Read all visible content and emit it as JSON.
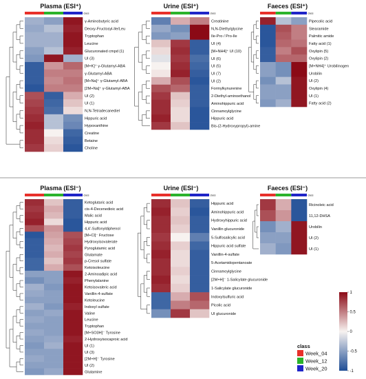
{
  "figure": {
    "colorscale": {
      "min": -1,
      "max": 1,
      "ticks": [
        1,
        0.5,
        0,
        -0.5,
        -1
      ],
      "low_color": "#1f4e96",
      "mid_color": "#f7f2f0",
      "high_color": "#8b0a16"
    },
    "legend": {
      "title": "class",
      "items": [
        {
          "label": "Week_04",
          "color": "#e8302a"
        },
        {
          "label": "Week_12",
          "color": "#2bb32b"
        },
        {
          "label": "Week_20",
          "color": "#1f25c8"
        }
      ]
    },
    "class_label": "class"
  },
  "chart_data": [
    {
      "type": "heatmap",
      "title": "Plasma (ESI⁺)",
      "columns": [
        "Week_04",
        "Week_12",
        "Week_20"
      ],
      "rows": [
        "γ-Aminobutyric acid",
        "Deoxy-Fructosyl-Ile/Leu",
        "Tryptophan",
        "Leucine",
        "Glucuronated cmpd (1)",
        "UI (3)",
        "[M+K]⁺ γ-Glutamyl-ABA",
        "γ-Glutamyl-ABA",
        "[M+Na]⁺ γ-Glutamyl-ABA",
        "[2M+Na]⁺ γ-Glutamyl-ABA",
        "UI (2)",
        "UI (1)",
        "N,N-Tetradecanediel",
        "Hippuric acid",
        "Hypoxanthine",
        "Creatine",
        "Betaine",
        "Choline"
      ],
      "values": [
        [
          -0.4,
          -0.5,
          0.95
        ],
        [
          -0.45,
          -0.3,
          0.9
        ],
        [
          -0.4,
          -0.4,
          0.95
        ],
        [
          -0.4,
          -0.4,
          0.95
        ],
        [
          -0.5,
          -0.3,
          0.9
        ],
        [
          -0.55,
          0.95,
          -0.4
        ],
        [
          -0.9,
          0.4,
          0.6
        ],
        [
          -0.9,
          0.5,
          0.5
        ],
        [
          -0.9,
          0.45,
          0.55
        ],
        [
          -0.95,
          0.5,
          0.5
        ],
        [
          0.7,
          -0.9,
          0.3
        ],
        [
          0.75,
          -0.85,
          0.2
        ],
        [
          0.8,
          -0.8,
          0.1
        ],
        [
          0.85,
          -0.3,
          -0.6
        ],
        [
          0.9,
          -0.3,
          -0.65
        ],
        [
          0.85,
          0.0,
          -0.85
        ],
        [
          0.85,
          0.1,
          -0.9
        ],
        [
          0.8,
          0.15,
          -0.95
        ]
      ]
    },
    {
      "type": "heatmap",
      "title": "Urine (ESI⁺)",
      "columns": [
        "Week_04",
        "Week_12",
        "Week_20"
      ],
      "rows": [
        "Creatinine",
        "N,N-Diethylglycine",
        "Ile-Pro / Pro-Ile",
        "UI (4)",
        "[M+NH4]⁺ UI (10)",
        "UI (6)",
        "UI (5)",
        "UI (7)",
        "UI (2)",
        "Formylkynurenine",
        "2-Diethyl-aminoethanol",
        "Aminohippuric acid",
        "Cinnamoylglycine",
        "Hippuric acid",
        "Bis-(2-Hydroxypropyl)-amine"
      ],
      "values": [
        [
          -0.7,
          0.3,
          0.5
        ],
        [
          -0.45,
          -0.6,
          1.0
        ],
        [
          -0.55,
          -0.5,
          1.0
        ],
        [
          0.2,
          0.8,
          -0.9
        ],
        [
          0.1,
          0.85,
          -0.9
        ],
        [
          -0.1,
          0.8,
          -0.8
        ],
        [
          0.0,
          0.85,
          -0.85
        ],
        [
          0.05,
          0.9,
          -0.9
        ],
        [
          0.3,
          0.7,
          -0.95
        ],
        [
          0.7,
          0.6,
          -0.9
        ],
        [
          0.8,
          0.2,
          -0.9
        ],
        [
          0.85,
          0.15,
          -0.9
        ],
        [
          0.85,
          0.1,
          -0.95
        ],
        [
          0.9,
          0.1,
          -0.95
        ],
        [
          0.8,
          0.2,
          -0.95
        ]
      ]
    },
    {
      "type": "heatmap",
      "title": "Faeces (ESI⁺)",
      "columns": [
        "Week_04",
        "Week_12",
        "Week_20"
      ],
      "rows": [
        "Pipecolic acid",
        "Stearamide",
        "Palmitic amide",
        "Fatty acid (1)",
        "Oxylipin (5)",
        "Oxylipin (2)",
        "[M+NH4]⁺ Urobilinogen",
        "Urobilin",
        "UI (2)",
        "Oxylipin (4)",
        "UI (1)",
        "Fatty acid (2)"
      ],
      "values": [
        [
          0.9,
          -0.3,
          -0.5
        ],
        [
          -0.95,
          0.7,
          0.5
        ],
        [
          -0.95,
          0.65,
          0.5
        ],
        [
          -0.95,
          0.6,
          0.55
        ],
        [
          -0.9,
          0.5,
          0.7
        ],
        [
          -0.9,
          0.6,
          0.6
        ],
        [
          -0.5,
          -0.6,
          1.0
        ],
        [
          -0.5,
          -0.6,
          1.0
        ],
        [
          -0.6,
          -0.3,
          0.95
        ],
        [
          -0.5,
          -0.5,
          0.95
        ],
        [
          -0.5,
          -0.5,
          0.95
        ],
        [
          -0.55,
          -0.4,
          0.95
        ]
      ]
    },
    {
      "type": "heatmap",
      "title": "Plasma (ESI⁻)",
      "columns": [
        "Week_04",
        "Week_12",
        "Week_20"
      ],
      "rows": [
        "Ketoglutaric acid",
        "cis-4-Decenedioic acid",
        "Malic acid",
        "Hippuric acid",
        "4,4'-Sulfonyldiphenol",
        "[M+Cl]⁻ Fructose",
        "Hydroxyisovalerate",
        "Pyroglutamic acid",
        "Glutamate",
        "p-Cresol sulfate",
        "Ketoisoleucine",
        "2-Aminoadipic acid",
        "Phenylalanine",
        "Ketoisovaleric acid",
        "Vanillin-4-sulfate",
        "Ketoleucine",
        "Indoxyl sulfate",
        "Valine",
        "Leucine",
        "Tryptophan",
        "[M+SO3H]⁻ Tyrosine",
        "2-Hydroxyisocaproic acid",
        "UI (1)",
        "UI (3)",
        "[2M+H]⁻ Tyrosine",
        "UI (2)",
        "Glutamine"
      ],
      "values": [
        [
          0.85,
          0.2,
          -0.9
        ],
        [
          0.8,
          0.3,
          -0.9
        ],
        [
          0.85,
          0.25,
          -0.9
        ],
        [
          0.9,
          0.1,
          -0.95
        ],
        [
          0.7,
          0.4,
          -0.95
        ],
        [
          -0.95,
          0.35,
          0.7
        ],
        [
          -0.9,
          0.3,
          0.75
        ],
        [
          -0.9,
          0.25,
          0.8
        ],
        [
          -0.9,
          0.3,
          0.75
        ],
        [
          -0.85,
          0.2,
          0.8
        ],
        [
          -0.85,
          0.3,
          0.7
        ],
        [
          -0.5,
          -0.5,
          0.95
        ],
        [
          -0.6,
          -0.5,
          0.9
        ],
        [
          -0.4,
          -0.55,
          0.95
        ],
        [
          -0.45,
          -0.5,
          0.95
        ],
        [
          -0.5,
          -0.5,
          0.95
        ],
        [
          -0.4,
          -0.55,
          0.9
        ],
        [
          -0.5,
          -0.45,
          0.95
        ],
        [
          -0.45,
          -0.5,
          0.95
        ],
        [
          -0.5,
          -0.5,
          0.95
        ],
        [
          -0.45,
          -0.5,
          0.95
        ],
        [
          -0.5,
          -0.45,
          0.9
        ],
        [
          -0.55,
          -0.4,
          0.95
        ],
        [
          -0.5,
          -0.5,
          0.95
        ],
        [
          -0.45,
          -0.5,
          0.95
        ],
        [
          -0.5,
          -0.5,
          0.95
        ],
        [
          -0.55,
          -0.45,
          0.95
        ]
      ]
    },
    {
      "type": "heatmap",
      "title": "Urine (ESI⁻)",
      "columns": [
        "Week_04",
        "Week_12",
        "Week_20"
      ],
      "rows": [
        "Hippuric acid",
        "Aminohippuric acid",
        "Hydroxyhippuric acid",
        "Vanillin glucuronide",
        "5-Sulfosalicylic acid",
        "Hippuric acid sulfate",
        "Vanillin-4-sulfate",
        "5-Acetamidopentanoate",
        "Cinnamoylglycine",
        "[2M+H]⁻ 1-Salicylate glucuronide",
        "1-Salicylate glucuronide",
        "Indoxylsulfuric acid",
        "Picolic acid",
        "UI glucuronide"
      ],
      "values": [
        [
          0.85,
          0.2,
          -0.9
        ],
        [
          0.9,
          0.15,
          -0.95
        ],
        [
          0.85,
          0.2,
          -0.9
        ],
        [
          0.85,
          0.15,
          -0.9
        ],
        [
          0.8,
          0.0,
          -0.7
        ],
        [
          0.85,
          0.15,
          -0.85
        ],
        [
          0.9,
          0.1,
          -0.9
        ],
        [
          0.85,
          0.1,
          -0.9
        ],
        [
          0.85,
          0.15,
          -0.9
        ],
        [
          0.9,
          0.1,
          -0.9
        ],
        [
          0.85,
          0.15,
          -0.9
        ],
        [
          -0.85,
          0.3,
          0.7
        ],
        [
          -0.85,
          0.5,
          0.6
        ],
        [
          -0.6,
          0.8,
          0.2
        ]
      ]
    },
    {
      "type": "heatmap",
      "title": "Faeces (ESI⁻)",
      "columns": [
        "Week_04",
        "Week_12",
        "Week_20"
      ],
      "rows": [
        "Ricinoleic acid",
        "11,12-DHSA",
        "Urobilin",
        "UI (2)",
        "UI (1)"
      ],
      "values": [
        [
          0.8,
          0.3,
          -0.95
        ],
        [
          0.7,
          0.4,
          -0.95
        ],
        [
          -0.6,
          -0.4,
          0.95
        ],
        [
          -0.5,
          -0.5,
          0.95
        ],
        [
          -0.4,
          -0.55,
          0.95
        ]
      ]
    }
  ]
}
